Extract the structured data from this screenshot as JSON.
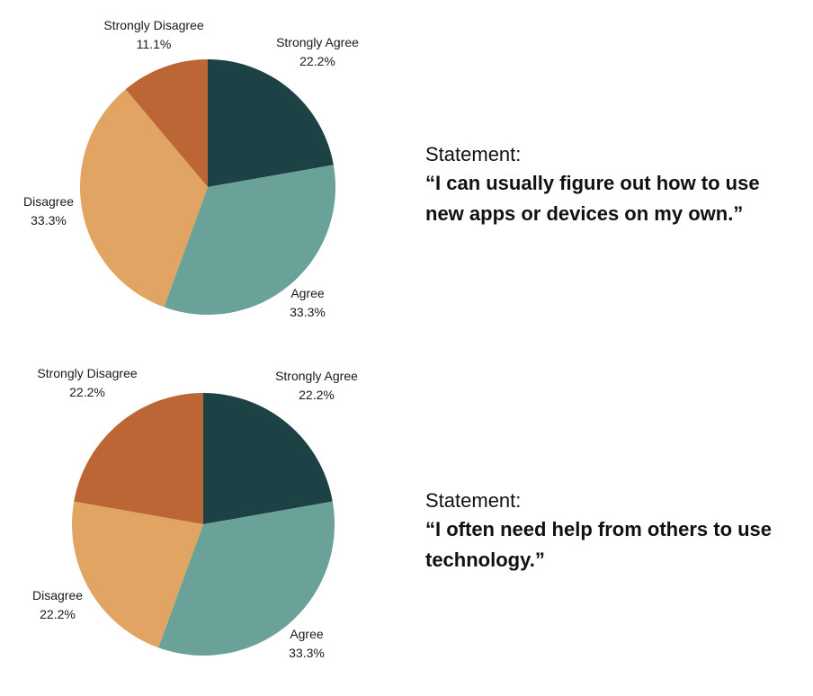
{
  "chart_data": [
    {
      "type": "pie",
      "categories": [
        "Strongly Agree",
        "Agree",
        "Disagree",
        "Strongly Disagree"
      ],
      "values": [
        22.2,
        33.3,
        33.3,
        11.1
      ],
      "value_labels": [
        "22.2%",
        "33.3%",
        "33.3%",
        "11.1%"
      ],
      "colors": [
        "#1c4245",
        "#6aa198",
        "#e2a462",
        "#bc6535"
      ],
      "statement_label": "Statement:",
      "statement": "“I can usually figure out how to use new apps or devices on my own.”"
    },
    {
      "type": "pie",
      "categories": [
        "Strongly Agree",
        "Agree",
        "Disagree",
        "Strongly Disagree"
      ],
      "values": [
        22.2,
        33.3,
        22.2,
        22.2
      ],
      "value_labels": [
        "22.2%",
        "33.3%",
        "22.2%",
        "22.2%"
      ],
      "colors": [
        "#1c4245",
        "#6aa198",
        "#e2a462",
        "#bc6535"
      ],
      "statement_label": "Statement:",
      "statement": "“I often need help from others to use technology.”"
    }
  ]
}
